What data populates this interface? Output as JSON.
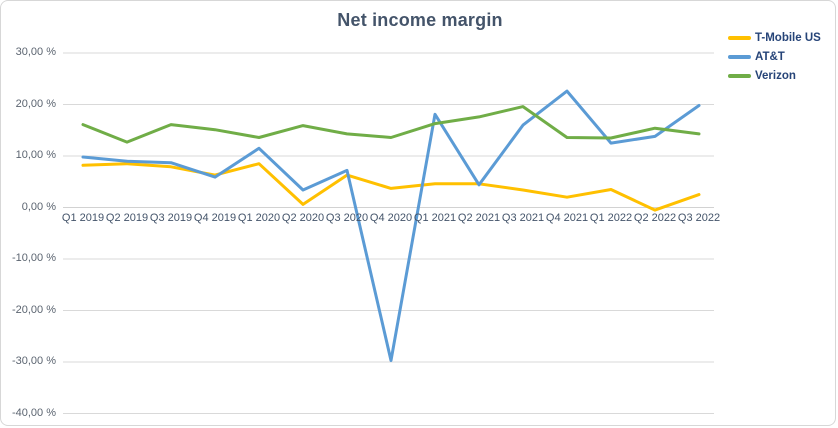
{
  "title": "Net income margin",
  "colors": {
    "tmobile": "#FFC000",
    "att": "#5B9BD5",
    "verizon": "#70AD47",
    "gridline": "#D9D9D9",
    "axis_line": "#D2D2D2",
    "title_text": "#44546A",
    "y_label_text": "#5b6470",
    "x_label_text": "#44546A",
    "legend_text": "#264478",
    "background": "#FFFFFF"
  },
  "chart_data": {
    "type": "line",
    "title": "Net income margin",
    "categories": [
      "Q1 2019",
      "Q2 2019",
      "Q3 2019",
      "Q4 2019",
      "Q1 2020",
      "Q2 2020",
      "Q3 2020",
      "Q4 2020",
      "Q1 2021",
      "Q2 2021",
      "Q3 2021",
      "Q4 2021",
      "Q1 2022",
      "Q2 2022",
      "Q3 2022"
    ],
    "series": [
      {
        "name": "T-Mobile US",
        "color": "#FFC000",
        "values": [
          8.2,
          8.5,
          7.9,
          6.3,
          8.5,
          0.6,
          6.3,
          3.7,
          4.6,
          4.6,
          3.4,
          2.0,
          3.5,
          -0.5,
          2.5
        ]
      },
      {
        "name": "AT&T",
        "color": "#5B9BD5",
        "values": [
          9.8,
          9.0,
          8.7,
          5.9,
          11.5,
          3.4,
          7.2,
          -29.7,
          18.1,
          4.4,
          16.0,
          22.6,
          12.5,
          13.8,
          19.8
        ]
      },
      {
        "name": "Verizon",
        "color": "#70AD47",
        "values": [
          16.1,
          12.7,
          16.1,
          15.1,
          13.6,
          15.9,
          14.3,
          13.6,
          16.3,
          17.6,
          19.6,
          13.6,
          13.5,
          15.4,
          14.3
        ]
      }
    ],
    "y_axis": {
      "tick_labels": [
        "30,00 %",
        "20,00 %",
        "10,00 %",
        "0,00 %",
        "-10,00 %",
        "-20,00 %",
        "-30,00 %",
        "-40,00 %"
      ],
      "tick_values": [
        30,
        20,
        10,
        0,
        -10,
        -20,
        -30,
        -40
      ],
      "min": -40,
      "max": 30,
      "unit": "%"
    },
    "legend": {
      "position": "top-right",
      "entries": [
        "T-Mobile US",
        "AT&T",
        "Verizon"
      ]
    },
    "grid": true,
    "xlabel": "",
    "ylabel": ""
  }
}
